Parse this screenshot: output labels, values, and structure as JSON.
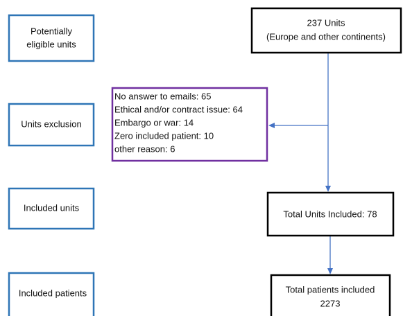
{
  "stages": [
    {
      "lines": [
        "Potentially",
        "eligible units"
      ]
    },
    {
      "lines": [
        "Units exclusion"
      ]
    },
    {
      "lines": [
        "Included units"
      ]
    },
    {
      "lines": [
        "Included patients"
      ]
    }
  ],
  "nodes": [
    {
      "lines": [
        "237 Units",
        "(Europe and other continents)"
      ]
    },
    {
      "lines": [
        "No answer to emails: 65",
        "Ethical and/or contract issue: 64",
        "Embargo or war: 14",
        "Zero included patient: 10",
        "other reason: 6"
      ]
    },
    {
      "lines": [
        "Total Units Included: 78"
      ]
    },
    {
      "lines": [
        "Total patients included",
        "2273"
      ]
    }
  ]
}
